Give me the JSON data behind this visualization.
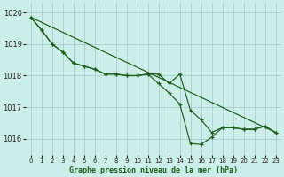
{
  "title": "Graphe pression niveau de la mer (hPa)",
  "background_color": "#cceee8",
  "grid_color": "#aacccc",
  "line_color": "#1a5c1a",
  "xlim": [
    -0.5,
    23.5
  ],
  "ylim": [
    1015.5,
    1020.3
  ],
  "yticks": [
    1016,
    1017,
    1018,
    1019,
    1020
  ],
  "xticks": [
    0,
    1,
    2,
    3,
    4,
    5,
    6,
    7,
    8,
    9,
    10,
    11,
    12,
    13,
    14,
    15,
    16,
    17,
    18,
    19,
    20,
    21,
    22,
    23
  ],
  "series1_x": [
    0,
    1,
    2,
    3,
    4,
    5,
    6,
    7,
    8,
    9,
    10,
    11,
    12,
    13,
    14,
    15,
    16,
    17,
    18,
    19,
    20,
    21,
    22,
    23
  ],
  "series1_y": [
    1019.85,
    1019.45,
    1019.0,
    1018.75,
    1018.4,
    1018.3,
    1018.2,
    1018.05,
    1018.05,
    1018.0,
    1018.0,
    1018.05,
    1018.05,
    1017.75,
    1018.05,
    1016.9,
    1016.6,
    1016.2,
    1016.35,
    1016.35,
    1016.3,
    1016.3,
    1016.4,
    1016.2
  ],
  "series2_x": [
    0,
    1,
    2,
    3,
    4,
    5,
    6,
    7,
    8,
    9,
    10,
    11,
    12,
    13,
    14,
    15,
    16,
    17,
    18,
    19,
    20,
    21,
    22,
    23
  ],
  "series2_y": [
    1019.85,
    1019.45,
    1019.0,
    1018.75,
    1018.4,
    1018.3,
    1018.2,
    1018.05,
    1018.05,
    1018.0,
    1018.0,
    1018.05,
    1017.75,
    1017.45,
    1017.1,
    1015.85,
    1015.82,
    1016.05,
    1016.35,
    1016.35,
    1016.3,
    1016.3,
    1016.4,
    1016.2
  ],
  "trend_x": [
    0,
    23
  ],
  "trend_y": [
    1019.85,
    1016.2
  ]
}
